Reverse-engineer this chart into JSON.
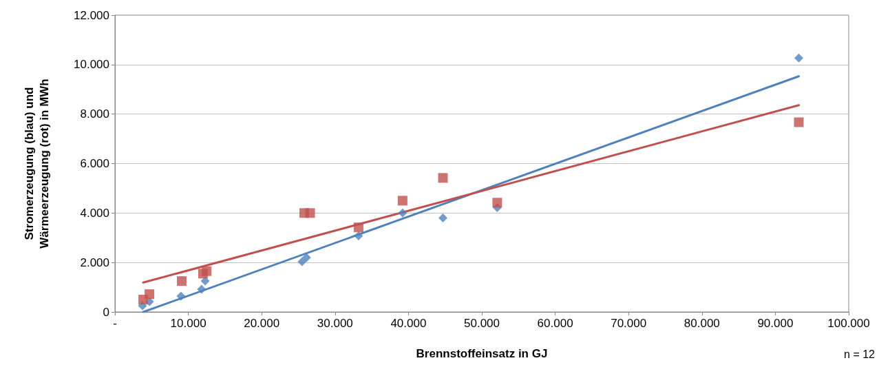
{
  "chart_data": {
    "type": "scatter",
    "xlabel": "Brennstoffeinsatz in GJ",
    "ylabel": "Stromerzeugung (blau) und\nWärmeerzeugung (rot) in MWh",
    "annotations": [
      "n = 12"
    ],
    "xlim": [
      0,
      100000
    ],
    "xticks": [
      {
        "value": 0,
        "label": "-"
      },
      {
        "value": 10000,
        "label": "10.000"
      },
      {
        "value": 20000,
        "label": "20.000"
      },
      {
        "value": 30000,
        "label": "30.000"
      },
      {
        "value": 40000,
        "label": "40.000"
      },
      {
        "value": 50000,
        "label": "50.000"
      },
      {
        "value": 60000,
        "label": "60.000"
      },
      {
        "value": 70000,
        "label": "70.000"
      },
      {
        "value": 80000,
        "label": "80.000"
      },
      {
        "value": 90000,
        "label": "90.000"
      },
      {
        "value": 100000,
        "label": "100.000"
      }
    ],
    "ylim": [
      0,
      12000
    ],
    "yticks": [
      0,
      {
        "value": 2000,
        "label": "2.000"
      },
      {
        "value": 4000,
        "label": "4.000"
      },
      {
        "value": 6000,
        "label": "6.000"
      },
      {
        "value": 8000,
        "label": "8.000"
      },
      {
        "value": 10000,
        "label": "10.000"
      },
      {
        "value": 12000,
        "label": "12.000"
      }
    ],
    "grid": "y",
    "series": [
      {
        "marker": "diamond",
        "color": "#4f81bd",
        "x": [
          3750,
          4700,
          9000,
          11800,
          12300,
          25500,
          26100,
          33200,
          39200,
          44700,
          52100,
          93200
        ],
        "values": [
          250,
          420,
          640,
          920,
          1250,
          2030,
          2200,
          3080,
          4000,
          3800,
          4220,
          10270
        ]
      },
      {
        "marker": "square",
        "color": "#c0504d",
        "x": [
          3850,
          4700,
          9100,
          12000,
          12500,
          25800,
          26600,
          33200,
          39200,
          44700,
          52100,
          93200
        ],
        "values": [
          500,
          720,
          1250,
          1550,
          1650,
          4000,
          4000,
          3420,
          4500,
          5420,
          4420,
          7670
        ]
      },
      {
        "type": "line",
        "marker": "none",
        "color": "#4f81bd",
        "x": [
          3850,
          93200
        ],
        "values": [
          0,
          9530
        ]
      },
      {
        "type": "line",
        "marker": "none",
        "color": "#c0504d",
        "x": [
          3850,
          93200
        ],
        "values": [
          1190,
          8360
        ]
      }
    ]
  }
}
